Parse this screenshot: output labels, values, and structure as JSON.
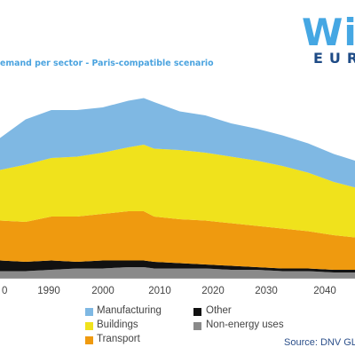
{
  "logo": {
    "top": "Wi",
    "bottom": "EUR"
  },
  "chart_data": {
    "type": "area",
    "title": "emand per sector - Paris-compatible scenario",
    "x": [
      1980,
      1985,
      1990,
      1995,
      2000,
      2005,
      2008,
      2010,
      2015,
      2020,
      2025,
      2030,
      2035,
      2040,
      2045,
      2050
    ],
    "x_tick_labels": [
      "0",
      "1990",
      "2000",
      "2010",
      "2020",
      "2030",
      "2040"
    ],
    "series": [
      {
        "name": "Non-energy uses",
        "color": "#8a8a8a",
        "values": [
          5,
          5,
          6,
          7,
          7,
          8,
          8,
          7,
          7,
          7,
          6,
          6,
          5,
          5,
          4,
          4
        ]
      },
      {
        "name": "Other",
        "color": "#111111",
        "values": [
          8,
          7,
          7,
          5,
          6,
          5,
          5,
          5,
          4,
          3,
          3,
          2,
          2,
          2,
          2,
          2
        ]
      },
      {
        "name": "Transport",
        "color": "#ef9a0f",
        "values": [
          30,
          30,
          33,
          34,
          35,
          37,
          37,
          34,
          33,
          33,
          32,
          31,
          30,
          28,
          26,
          24
        ]
      },
      {
        "name": "Buildings",
        "color": "#f0e21c",
        "values": [
          38,
          43,
          44,
          45,
          46,
          48,
          50,
          51,
          52,
          51,
          50,
          49,
          47,
          44,
          40,
          37
        ]
      },
      {
        "name": "Manufacturing",
        "color": "#7fb8e3",
        "values": [
          24,
          34,
          36,
          35,
          34,
          35,
          35,
          35,
          29,
          28,
          25,
          24,
          23,
          22,
          21,
          20
        ]
      }
    ],
    "legend_position": "bottom",
    "grid": false
  },
  "legend": [
    {
      "label": "Manufacturing",
      "color": "#7fb8e3"
    },
    {
      "label": "Other",
      "color": "#111111"
    },
    {
      "label": "Buildings",
      "color": "#f0e21c"
    },
    {
      "label": "Non-energy uses",
      "color": "#8a8a8a"
    },
    {
      "label": "Transport",
      "color": "#ef9a0f"
    }
  ],
  "source": "Source: DNV GL fo"
}
